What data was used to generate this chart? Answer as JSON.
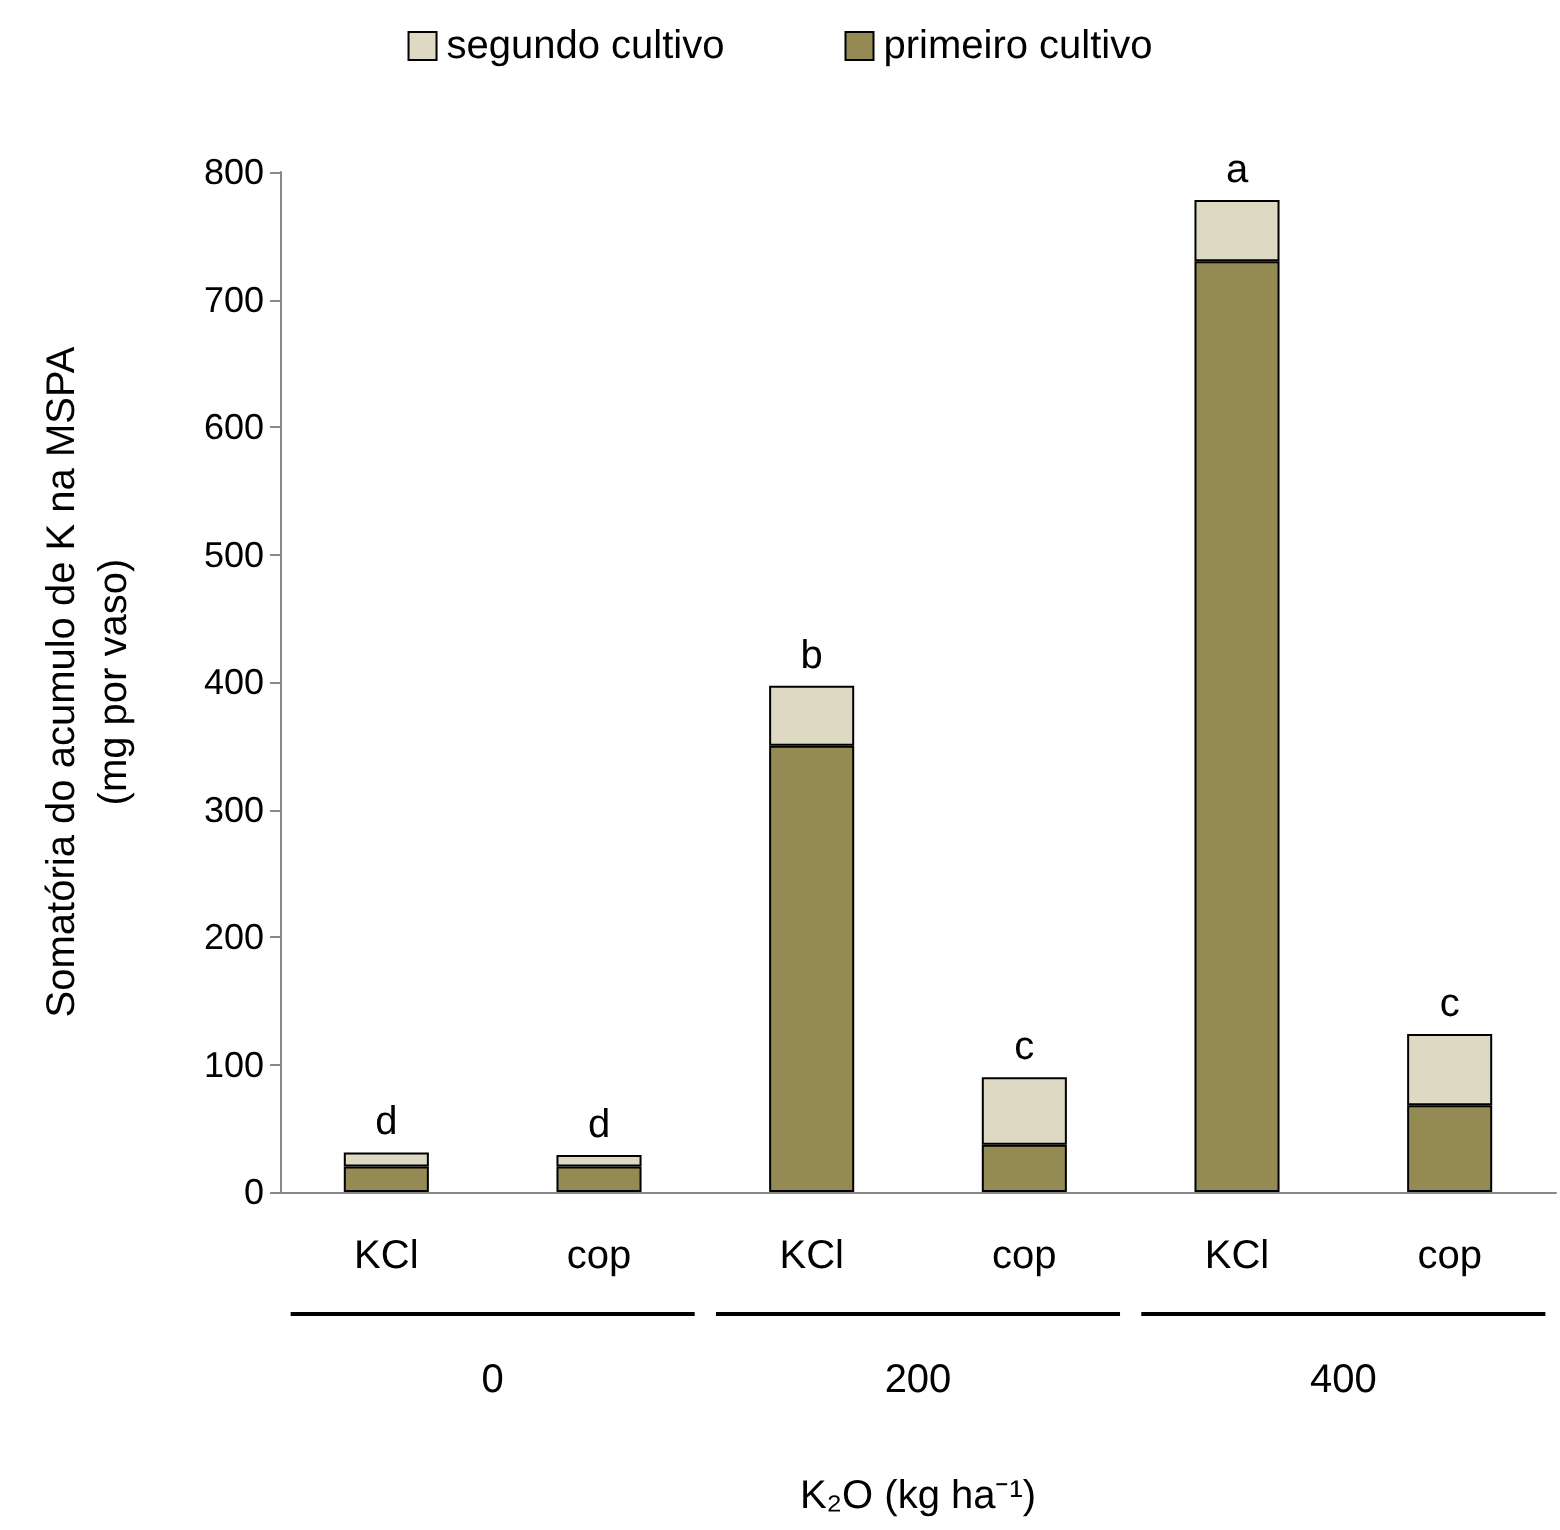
{
  "chart_data": {
    "type": "bar",
    "stacked": true,
    "categories": [
      "KCl",
      "cop",
      "KCl",
      "cop",
      "KCl",
      "cop"
    ],
    "series": [
      {
        "name": "primeiro cultivo",
        "color": "#948a54",
        "values": [
          20,
          20,
          350,
          37,
          730,
          68
        ]
      },
      {
        "name": "segundo cultivo",
        "color": "#ddd9c3",
        "values": [
          11,
          9,
          47,
          53,
          48,
          56
        ]
      }
    ],
    "totals": [
      "d",
      "d",
      "b",
      "c",
      "a",
      "c"
    ],
    "annotations": [
      "0",
      "200",
      "400"
    ],
    "xlabel": "K₂O (kg ha⁻¹)",
    "ylabel": "Somatória do acumulo de K na MSPA\n(mg por vaso)",
    "ylim": [
      0,
      800
    ],
    "yticks": [
      0,
      100,
      200,
      300,
      400,
      500,
      600,
      700,
      800
    ],
    "grid": false,
    "legend": "top"
  }
}
